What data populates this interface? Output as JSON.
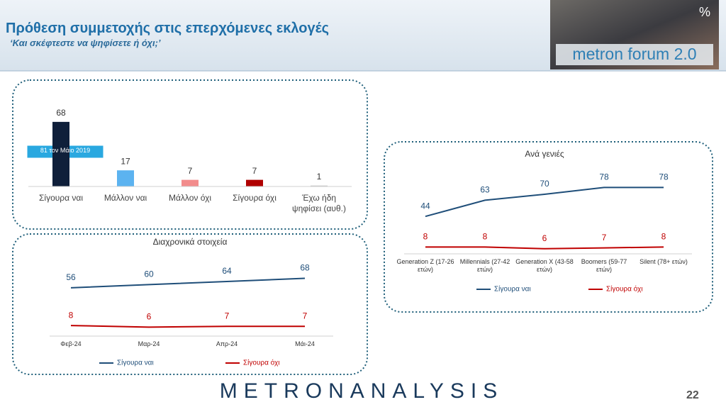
{
  "header": {
    "title": "Πρόθεση συμμετοχής στις επερχόμενες εκλογές",
    "subtitle": "‘Και σκέφτεστε να ψηφίσετε ή όχι;’",
    "logo": "metron forum 2.0",
    "logo_mark": "%"
  },
  "footer": {
    "brand": "METRONANALYSIS",
    "page": "22"
  },
  "chart_data": [
    {
      "type": "bar",
      "categories": [
        "Σίγουρα ναι",
        "Μάλλον ναι",
        "Μάλλον όχι",
        "Σίγουρα όχι",
        "Έχω ήδη ψηφίσει (αυθ.)"
      ],
      "values": [
        68,
        17,
        7,
        7,
        1
      ],
      "colors": [
        "#0f1f3a",
        "#5cb3f0",
        "#f28c8c",
        "#b00000",
        "#c8c8c8"
      ],
      "annotation": "81 τον Μάιο 2019"
    },
    {
      "type": "line",
      "title": "Διαχρονικά στοιχεία",
      "categories": [
        "Φεβ-24",
        "Μαρ-24",
        "Απρ-24",
        "Μάι-24"
      ],
      "series": [
        {
          "name": "Σίγουρα ναι",
          "color": "#1f4e79",
          "values": [
            56,
            60,
            64,
            68
          ]
        },
        {
          "name": "Σίγουρα όχι",
          "color": "#c00000",
          "values": [
            8,
            6,
            7,
            7
          ]
        }
      ]
    },
    {
      "type": "line",
      "title": "Ανά γενιές",
      "categories": [
        "Generation Z (17-26 ετών)",
        "Millennials (27-42 ετών)",
        "Generation X (43-58 ετών)",
        "Boomers (59-77 ετών)",
        "Silent (78+ ετών)"
      ],
      "series": [
        {
          "name": "Σίγουρα ναι",
          "color": "#1f4e79",
          "values": [
            44,
            63,
            70,
            78,
            78
          ]
        },
        {
          "name": "Σίγουρα όχι",
          "color": "#c00000",
          "values": [
            8,
            8,
            6,
            7,
            8
          ]
        }
      ]
    }
  ]
}
